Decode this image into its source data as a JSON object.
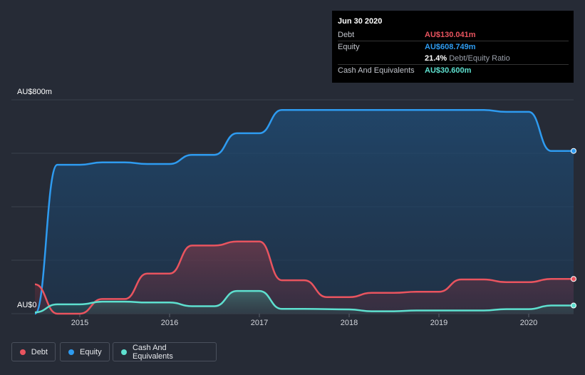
{
  "tooltip": {
    "date": "Jun 30 2020",
    "debt_label": "Debt",
    "debt_value": "AU$130.041m",
    "equity_label": "Equity",
    "equity_value": "AU$608.749m",
    "ratio_value": "21.4%",
    "ratio_label": "Debt/Equity Ratio",
    "cash_label": "Cash And Equivalents",
    "cash_value": "AU$30.600m"
  },
  "colors": {
    "debt": "#e9545f",
    "equity": "#2e9bf0",
    "cash": "#5ee0cf",
    "background": "#262b36"
  },
  "chart_data": {
    "type": "area",
    "y_axis_labels": {
      "top": "AU$800m",
      "bottom": "AU$0"
    },
    "ylim": [
      0,
      800
    ],
    "xlim": [
      2014.5,
      2020.5
    ],
    "x_ticks": [
      "2015",
      "2016",
      "2017",
      "2018",
      "2019",
      "2020"
    ],
    "grid": true,
    "legend_position": "bottom-left",
    "series": [
      {
        "name": "Debt",
        "key": "debt",
        "points": [
          [
            2014.5,
            110
          ],
          [
            2014.75,
            0
          ],
          [
            2015.0,
            0
          ],
          [
            2015.25,
            55
          ],
          [
            2015.5,
            55
          ],
          [
            2015.75,
            150
          ],
          [
            2016.0,
            150
          ],
          [
            2016.25,
            255
          ],
          [
            2016.5,
            255
          ],
          [
            2016.75,
            270
          ],
          [
            2017.0,
            270
          ],
          [
            2017.25,
            125
          ],
          [
            2017.5,
            125
          ],
          [
            2017.75,
            62
          ],
          [
            2018.0,
            62
          ],
          [
            2018.25,
            78
          ],
          [
            2018.5,
            78
          ],
          [
            2018.75,
            82
          ],
          [
            2019.0,
            82
          ],
          [
            2019.25,
            128
          ],
          [
            2019.5,
            128
          ],
          [
            2019.75,
            118
          ],
          [
            2020.0,
            118
          ],
          [
            2020.25,
            130.041
          ],
          [
            2020.5,
            130.041
          ]
        ]
      },
      {
        "name": "Equity",
        "key": "equity",
        "points": [
          [
            2014.5,
            0
          ],
          [
            2014.75,
            557
          ],
          [
            2015.0,
            557
          ],
          [
            2015.25,
            566
          ],
          [
            2015.5,
            566
          ],
          [
            2015.75,
            560
          ],
          [
            2016.0,
            560
          ],
          [
            2016.25,
            594
          ],
          [
            2016.5,
            594
          ],
          [
            2016.75,
            675
          ],
          [
            2017.0,
            675
          ],
          [
            2017.25,
            762
          ],
          [
            2017.5,
            762
          ],
          [
            2018.0,
            762
          ],
          [
            2018.5,
            762
          ],
          [
            2019.0,
            762
          ],
          [
            2019.5,
            762
          ],
          [
            2019.75,
            755
          ],
          [
            2020.0,
            755
          ],
          [
            2020.25,
            608.749
          ],
          [
            2020.5,
            608.749
          ]
        ]
      },
      {
        "name": "Cash And Equivalents",
        "key": "cash",
        "points": [
          [
            2014.5,
            5
          ],
          [
            2014.75,
            35
          ],
          [
            2015.0,
            35
          ],
          [
            2015.25,
            45
          ],
          [
            2015.5,
            45
          ],
          [
            2015.75,
            42
          ],
          [
            2016.0,
            42
          ],
          [
            2016.25,
            28
          ],
          [
            2016.5,
            28
          ],
          [
            2016.75,
            85
          ],
          [
            2017.0,
            85
          ],
          [
            2017.25,
            18
          ],
          [
            2017.5,
            18
          ],
          [
            2018.0,
            16
          ],
          [
            2018.25,
            9
          ],
          [
            2018.5,
            9
          ],
          [
            2018.75,
            12
          ],
          [
            2019.0,
            12
          ],
          [
            2019.5,
            12
          ],
          [
            2019.75,
            17
          ],
          [
            2020.0,
            17
          ],
          [
            2020.25,
            30.6
          ],
          [
            2020.5,
            30.6
          ]
        ]
      }
    ]
  },
  "legend": [
    {
      "label": "Debt",
      "key": "debt"
    },
    {
      "label": "Equity",
      "key": "equity"
    },
    {
      "label": "Cash And Equivalents",
      "key": "cash"
    }
  ]
}
